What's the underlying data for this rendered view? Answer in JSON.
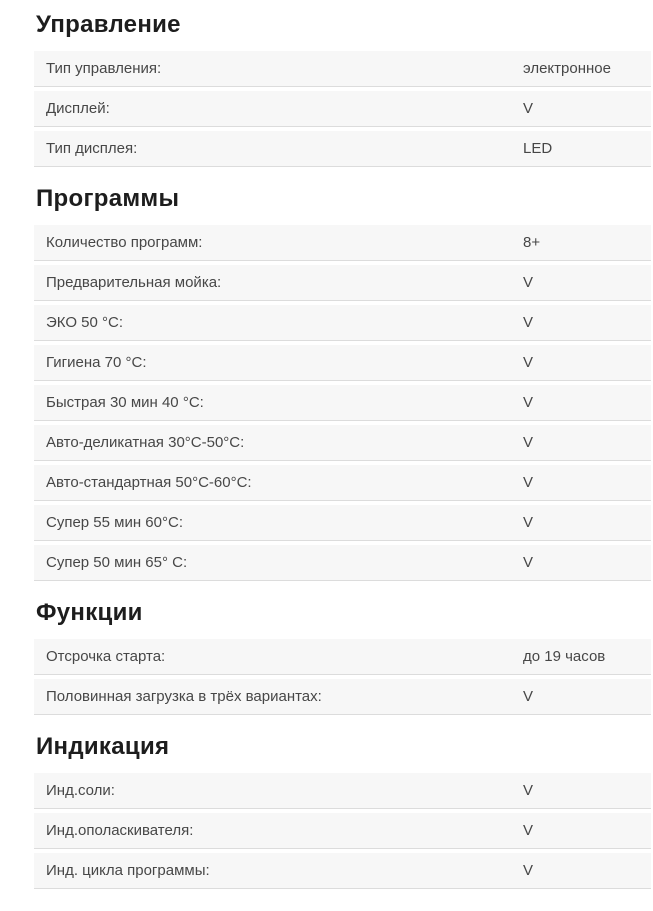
{
  "colors": {
    "row_background": "#f7f7f7",
    "row_border": "#dcdcdc",
    "label_text": "#474747",
    "heading_text": "#1d1d1d",
    "page_background": "#ffffff"
  },
  "sections": [
    {
      "title": "Управление",
      "rows": [
        {
          "label": "Тип управления:",
          "value": "электронное"
        },
        {
          "label": "Дисплей:",
          "value": "V"
        },
        {
          "label": "Тип дисплея:",
          "value": "LED"
        }
      ]
    },
    {
      "title": "Программы",
      "rows": [
        {
          "label": "Количество программ:",
          "value": "8+"
        },
        {
          "label": "Предварительная мойка:",
          "value": "V"
        },
        {
          "label": "ЭКО 50 °С:",
          "value": "V"
        },
        {
          "label": "Гигиена 70 °С:",
          "value": "V"
        },
        {
          "label": "Быстрая 30 мин 40 °С:",
          "value": "V"
        },
        {
          "label": "Авто-деликатная 30°С-50°С:",
          "value": "V"
        },
        {
          "label": "Авто-стандартная 50°С-60°С:",
          "value": "V"
        },
        {
          "label": "Супер 55 мин 60°С:",
          "value": "V"
        },
        {
          "label": "Супер 50 мин 65° С:",
          "value": "V"
        }
      ]
    },
    {
      "title": "Функции",
      "rows": [
        {
          "label": "Отсрочка старта:",
          "value": "до 19 часов"
        },
        {
          "label": "Половинная загрузка в трёх вариантах:",
          "value": "V"
        }
      ]
    },
    {
      "title": "Индикация",
      "rows": [
        {
          "label": "Инд.соли:",
          "value": "V"
        },
        {
          "label": "Инд.ополаскивателя:",
          "value": "V"
        },
        {
          "label": "Инд. цикла программы:",
          "value": "V"
        }
      ]
    }
  ]
}
